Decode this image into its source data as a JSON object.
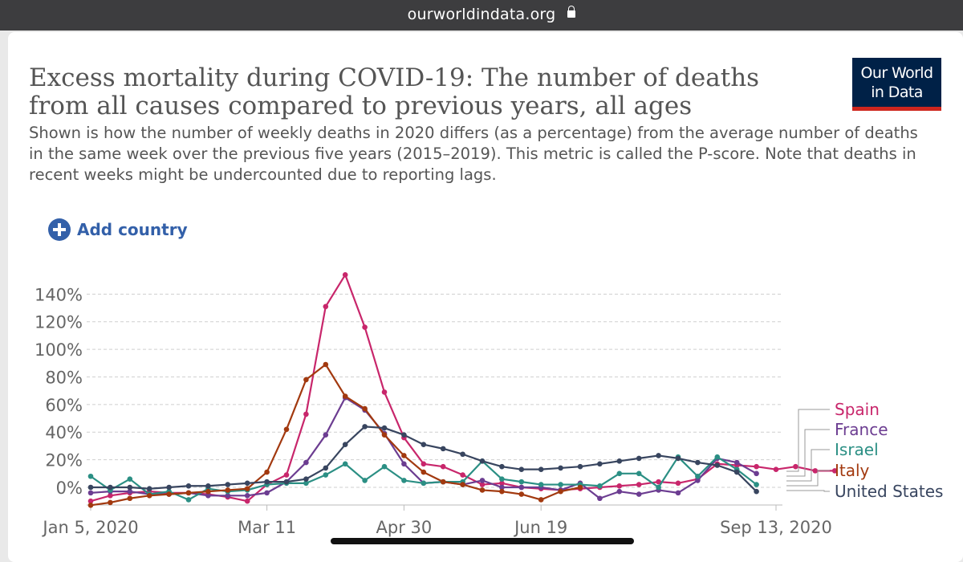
{
  "browser": {
    "url": "ourworldindata.org"
  },
  "logo": {
    "line1": "Our World",
    "line2": "in Data"
  },
  "title": "Excess mortality during COVID-19: The number of deaths from all causes compared to previous years, all ages",
  "subtitle": "Shown is how the number of weekly deaths in 2020 differs (as a percentage) from the average number of deaths in the same week over the previous five years (2015–2019). This metric is called the P-score. Note that deaths in recent weeks might be undercounted due to reporting lags.",
  "add_country_label": "Add country",
  "colors": {
    "Spain": "#c8266b",
    "France": "#6c3d91",
    "Israel": "#2b8f84",
    "Italy": "#a2390f",
    "United States": "#38455f"
  },
  "chart_data": {
    "type": "line",
    "title": "Excess mortality during COVID-19: The number of deaths from all causes compared to previous years, all ages",
    "ylabel": "",
    "xlabel": "",
    "y_ticks": [
      "0%",
      "20%",
      "40%",
      "60%",
      "80%",
      "100%",
      "120%",
      "140%"
    ],
    "ylim": [
      -15,
      150
    ],
    "x_ticks": [
      "Jan 5, 2020",
      "Mar 11",
      "Apr 30",
      "Jun 19",
      "Sep 13, 2020"
    ],
    "x_tick_weeks": [
      1,
      10,
      17,
      24,
      36
    ],
    "grid": "horizontal dashed",
    "legend_position": "right",
    "series": [
      {
        "name": "Spain",
        "start_week": 1,
        "values": [
          -10,
          -6,
          -4,
          -3,
          -4,
          -4,
          -5,
          -7,
          -10,
          2,
          9,
          53,
          131,
          154,
          116,
          69,
          36,
          17,
          15,
          9,
          2,
          3,
          0,
          -1,
          -2,
          -1,
          0,
          1,
          2,
          4,
          3,
          6,
          17,
          16,
          15,
          13,
          15,
          12,
          12
        ]
      },
      {
        "name": "France",
        "start_week": 1,
        "values": [
          -4,
          -3,
          -3,
          -5,
          -5,
          -4,
          -6,
          -6,
          -6,
          -4,
          4,
          18,
          38,
          65,
          56,
          39,
          17,
          3,
          4,
          2,
          5,
          0,
          0,
          0,
          -2,
          3,
          -8,
          -3,
          -5,
          -2,
          -4,
          5,
          21,
          18,
          10
        ]
      },
      {
        "name": "Israel",
        "start_week": 1,
        "values": [
          8,
          -2,
          6,
          -5,
          -3,
          -9,
          -1,
          -3,
          -2,
          2,
          3,
          3,
          9,
          17,
          5,
          15,
          5,
          3,
          4,
          4,
          19,
          6,
          4,
          2,
          2,
          2,
          1,
          10,
          10,
          0,
          22,
          8,
          22,
          13,
          2
        ]
      },
      {
        "name": "Italy",
        "start_week": 1,
        "values": [
          -13,
          -11,
          -8,
          -6,
          -5,
          -4,
          -3,
          -2,
          -1,
          11,
          42,
          78,
          89,
          66,
          57,
          38,
          23,
          11,
          4,
          2,
          -2,
          -3,
          -5,
          -9,
          -3,
          0
        ]
      },
      {
        "name": "United States",
        "start_week": 1,
        "values": [
          0,
          0,
          0,
          -1,
          0,
          1,
          1,
          2,
          3,
          4,
          4,
          6,
          14,
          31,
          44,
          43,
          38,
          31,
          28,
          24,
          19,
          15,
          13,
          13,
          14,
          15,
          17,
          19,
          21,
          23,
          21,
          18,
          16,
          11,
          -3
        ]
      }
    ]
  }
}
